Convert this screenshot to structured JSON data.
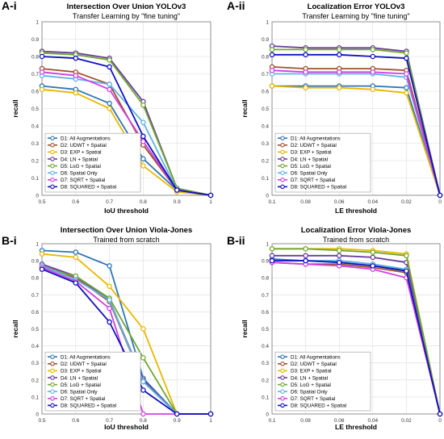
{
  "legend_labels": [
    "D1: All Augmentations",
    "D2: UDWT + Spatial",
    "D3: EXP + Spatial",
    "D4: LN + Spatial",
    "D5: LoG + Spatial",
    "D6: Spatial Only",
    "D7: SQRT + Spatial",
    "D8: SQUARED + Spatial"
  ],
  "series_colors": [
    "#2e75b6",
    "#a0522d",
    "#e8b800",
    "#6a3d9a",
    "#70a830",
    "#5fb3e6",
    "#d040e0",
    "#1010c0"
  ],
  "chart_data": [
    {
      "type": "line",
      "panel_label": "A-i",
      "title": "Intersection Over Union YOLOv3",
      "subtitle": "Transfer Learning by \"fine tuning\"",
      "xlabel": "IoU threshold",
      "ylabel": "recall",
      "x": [
        0.5,
        0.6,
        0.7,
        0.8,
        0.9,
        1
      ],
      "xticks": [
        "0.5",
        "0.6",
        "0.7",
        "0.8",
        "0.9",
        "1"
      ],
      "xlim": [
        0.5,
        1
      ],
      "ylim": [
        0,
        1
      ],
      "yticks": [
        "0",
        "0.1",
        "0.2",
        "0.3",
        "0.4",
        "0.5",
        "0.6",
        "0.7",
        "0.8",
        "0.9",
        "1"
      ],
      "grid": true,
      "legend_position": "bottom-left",
      "series": [
        {
          "name": "D1: All Augmentations",
          "values": [
            0.63,
            0.61,
            0.53,
            0.21,
            0.03,
            0
          ]
        },
        {
          "name": "D2: UDWT + Spatial",
          "values": [
            0.73,
            0.71,
            0.64,
            0.29,
            0.03,
            0
          ]
        },
        {
          "name": "D3: EXP + Spatial",
          "values": [
            0.61,
            0.59,
            0.5,
            0.17,
            0.02,
            0
          ]
        },
        {
          "name": "D4: LN + Spatial",
          "values": [
            0.83,
            0.82,
            0.79,
            0.54,
            0.04,
            0
          ]
        },
        {
          "name": "D5: LoG + Spatial",
          "values": [
            0.82,
            0.81,
            0.78,
            0.52,
            0.04,
            0
          ]
        },
        {
          "name": "D6: Spatial Only",
          "values": [
            0.69,
            0.67,
            0.64,
            0.42,
            0.03,
            0
          ]
        },
        {
          "name": "D7: SQRT + Spatial",
          "values": [
            0.71,
            0.69,
            0.61,
            0.31,
            0.03,
            0
          ]
        },
        {
          "name": "D8: SQUARED + Spatial",
          "values": [
            0.8,
            0.79,
            0.74,
            0.34,
            0.03,
            0
          ]
        }
      ]
    },
    {
      "type": "line",
      "panel_label": "A-ii",
      "title": "Localization Error YOLOv3",
      "subtitle": "Transfer Learning by \"fine tuning\"",
      "xlabel": "LE threshold",
      "ylabel": "recall",
      "x": [
        0.1,
        0.08,
        0.06,
        0.04,
        0.02,
        0
      ],
      "xticks": [
        "0.1",
        "0.08",
        "0.06",
        "0.04",
        "0.02",
        "0"
      ],
      "xlim": [
        0.1,
        0
      ],
      "ylim": [
        0,
        1
      ],
      "yticks": [
        "0",
        "0.1",
        "0.2",
        "0.3",
        "0.4",
        "0.5",
        "0.6",
        "0.7",
        "0.8",
        "0.9",
        "1"
      ],
      "grid": true,
      "legend_position": "bottom-left",
      "series": [
        {
          "name": "D1: All Augmentations",
          "values": [
            0.63,
            0.63,
            0.63,
            0.63,
            0.62,
            0
          ]
        },
        {
          "name": "D2: UDWT + Spatial",
          "values": [
            0.74,
            0.73,
            0.73,
            0.73,
            0.72,
            0
          ]
        },
        {
          "name": "D3: EXP + Spatial",
          "values": [
            0.63,
            0.62,
            0.62,
            0.61,
            0.59,
            0
          ]
        },
        {
          "name": "D4: LN + Spatial",
          "values": [
            0.86,
            0.85,
            0.85,
            0.85,
            0.83,
            0
          ]
        },
        {
          "name": "D5: LoG + Spatial",
          "values": [
            0.84,
            0.84,
            0.84,
            0.84,
            0.82,
            0
          ]
        },
        {
          "name": "D6: Spatial Only",
          "values": [
            0.7,
            0.7,
            0.7,
            0.7,
            0.68,
            0
          ]
        },
        {
          "name": "D7: SQRT + Spatial",
          "values": [
            0.72,
            0.71,
            0.71,
            0.71,
            0.7,
            0
          ]
        },
        {
          "name": "D8: SQUARED + Spatial",
          "values": [
            0.81,
            0.81,
            0.81,
            0.8,
            0.79,
            0
          ]
        }
      ]
    },
    {
      "type": "line",
      "panel_label": "B-i",
      "title": "Intersection Over Union Viola-Jones",
      "subtitle": "Trained from scratch",
      "xlabel": "IoU threshold",
      "ylabel": "recall",
      "x": [
        0.5,
        0.6,
        0.7,
        0.8,
        0.9,
        1
      ],
      "xticks": [
        "0.5",
        "0.6",
        "0.7",
        "0.8",
        "0.9",
        "1"
      ],
      "xlim": [
        0.5,
        1
      ],
      "ylim": [
        0,
        1
      ],
      "yticks": [
        "0",
        "0.1",
        "0.2",
        "0.3",
        "0.4",
        "0.5",
        "0.6",
        "0.7",
        "0.8",
        "0.9",
        "1"
      ],
      "grid": true,
      "legend_position": "bottom-left",
      "series": [
        {
          "name": "D1: All Augmentations",
          "values": [
            0.96,
            0.95,
            0.87,
            0.21,
            0,
            0
          ]
        },
        {
          "name": "D2: UDWT + Spatial",
          "values": [
            0.87,
            0.8,
            0.66,
            0.19,
            0,
            0
          ]
        },
        {
          "name": "D3: EXP + Spatial",
          "values": [
            0.94,
            0.92,
            0.75,
            0.5,
            0,
            0
          ]
        },
        {
          "name": "D4: LN + Spatial",
          "values": [
            0.88,
            0.81,
            0.67,
            0.2,
            0,
            0
          ]
        },
        {
          "name": "D5: LoG + Spatial",
          "values": [
            0.86,
            0.81,
            0.68,
            0.33,
            0,
            0
          ]
        },
        {
          "name": "D6: Spatial Only",
          "values": [
            0.87,
            0.79,
            0.67,
            0.19,
            0,
            0
          ]
        },
        {
          "name": "D7: SQRT + Spatial",
          "values": [
            0.86,
            0.78,
            0.62,
            0,
            0,
            0
          ]
        },
        {
          "name": "D8: SQUARED + Spatial",
          "values": [
            0.85,
            0.77,
            0.54,
            0.14,
            0,
            0
          ]
        }
      ]
    },
    {
      "type": "line",
      "panel_label": "B-ii",
      "title": "Localization Error Viola-Jones",
      "subtitle": "Trained from scratch",
      "xlabel": "LE threshold",
      "ylabel": "recall",
      "x": [
        0.1,
        0.08,
        0.06,
        0.04,
        0.02,
        0
      ],
      "xticks": [
        "0.1",
        "0.08",
        "0.06",
        "0.04",
        "0.02",
        "0"
      ],
      "xlim": [
        0.1,
        0
      ],
      "ylim": [
        0,
        1
      ],
      "yticks": [
        "0",
        "0.1",
        "0.2",
        "0.3",
        "0.4",
        "0.5",
        "0.6",
        "0.7",
        "0.8",
        "0.9",
        "1"
      ],
      "grid": true,
      "legend_position": "bottom-left",
      "series": [
        {
          "name": "D1: All Augmentations",
          "values": [
            0.91,
            0.9,
            0.9,
            0.88,
            0.84,
            0
          ]
        },
        {
          "name": "D2: UDWT + Spatial",
          "values": [
            0.89,
            0.88,
            0.88,
            0.86,
            0.83,
            0
          ]
        },
        {
          "name": "D3: EXP + Spatial",
          "values": [
            0.97,
            0.97,
            0.97,
            0.96,
            0.94,
            0
          ]
        },
        {
          "name": "D4: LN + Spatial",
          "values": [
            0.93,
            0.93,
            0.93,
            0.92,
            0.89,
            0
          ]
        },
        {
          "name": "D5: LoG + Spatial",
          "values": [
            0.97,
            0.97,
            0.96,
            0.95,
            0.93,
            0
          ]
        },
        {
          "name": "D6: Spatial Only",
          "values": [
            0.9,
            0.9,
            0.9,
            0.88,
            0.85,
            0
          ]
        },
        {
          "name": "D7: SQRT + Spatial",
          "values": [
            0.89,
            0.88,
            0.87,
            0.85,
            0.8,
            0
          ]
        },
        {
          "name": "D8: SQUARED + Spatial",
          "values": [
            0.9,
            0.9,
            0.89,
            0.87,
            0.84,
            0
          ]
        }
      ]
    }
  ]
}
